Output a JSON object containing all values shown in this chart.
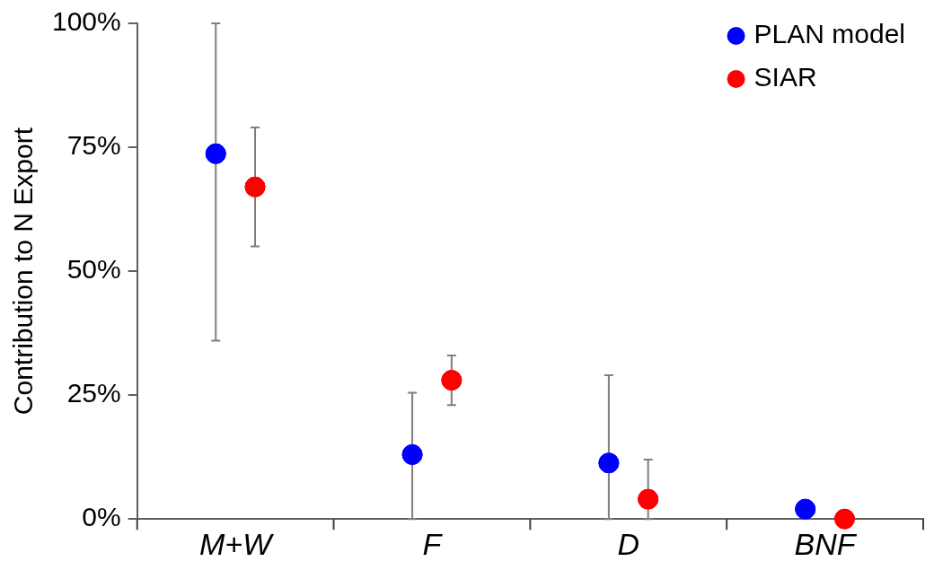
{
  "chart_data": {
    "type": "scatter",
    "ylabel": "Contribution to N Export",
    "categories": [
      "M+W",
      "F",
      "D",
      "BNF"
    ],
    "series": [
      {
        "name": "PLAN model",
        "color": "#0000ff",
        "values": [
          73.7,
          13,
          11.3,
          2
        ],
        "errors": [
          [
            36,
            100
          ],
          [
            0,
            25.5
          ],
          [
            0,
            29
          ],
          null
        ]
      },
      {
        "name": "SIAR",
        "color": "#ff0000",
        "values": [
          67,
          28,
          4,
          0
        ],
        "errors": [
          [
            55,
            79
          ],
          [
            23,
            33
          ],
          [
            0,
            12
          ],
          null
        ]
      }
    ],
    "ylim": [
      0,
      100
    ],
    "yticks": [
      {
        "value": 0,
        "label": "0%"
      },
      {
        "value": 25,
        "label": "25%"
      },
      {
        "value": 50,
        "label": "50%"
      },
      {
        "value": 75,
        "label": "75%"
      },
      {
        "value": 100,
        "label": "100%"
      }
    ],
    "grid": false,
    "legend": "top right",
    "marker": "circle"
  }
}
